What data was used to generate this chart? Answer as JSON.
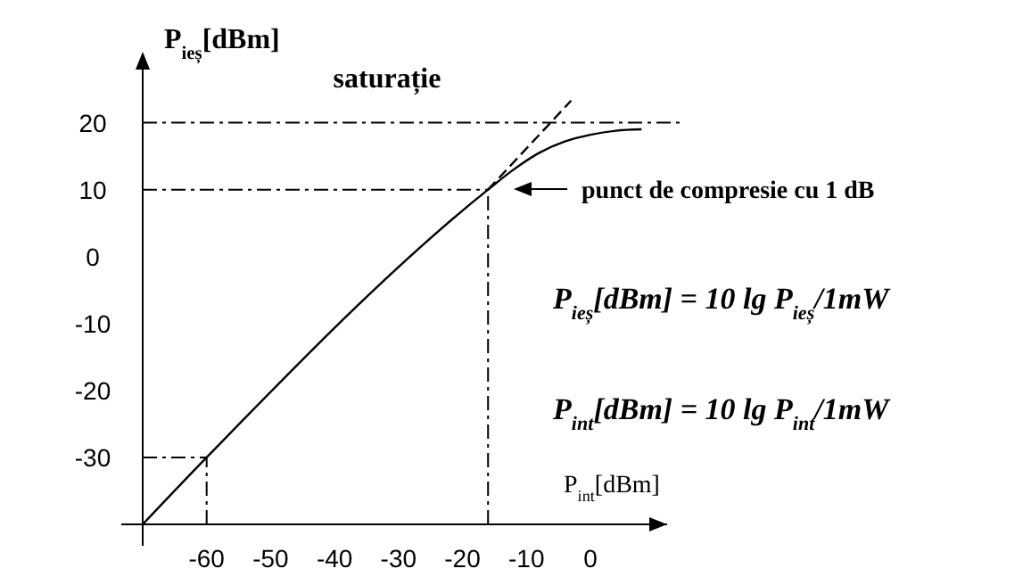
{
  "chart_data": {
    "type": "line",
    "xlabel": "P$_{int}$[dBm]",
    "ylabel": "P$_{ieș}$[dBm]",
    "xlim": [
      -70,
      12
    ],
    "ylim": [
      -40,
      29
    ],
    "xticks": [
      -60,
      -50,
      -40,
      -30,
      -20,
      -10,
      0
    ],
    "yticks": [
      -30,
      -20,
      -10,
      0,
      10,
      20
    ],
    "grid": false,
    "marker": "none",
    "series": [
      {
        "color": "#000000",
        "x": [
          -70,
          -60,
          -16,
          -12,
          -8,
          -4,
          0,
          4,
          8
        ],
        "values": [
          -40,
          -30,
          10,
          13,
          15.5,
          17.2,
          18.2,
          18.8,
          19
        ],
        "line_style": "solid"
      },
      {
        "color": "#000000",
        "x": [
          -16,
          -3
        ],
        "values": [
          10,
          23.3
        ],
        "line_style": "dashed"
      }
    ],
    "ref_lines": [
      {
        "axis": "y",
        "value": 20,
        "label": "saturație",
        "line_style": "dashdot"
      },
      {
        "axis": "y",
        "value": 10,
        "line_style": "dashdot"
      },
      {
        "axis": "x",
        "value": -16,
        "line_style": "dashdot"
      },
      {
        "axis": "y",
        "value": -30,
        "line_style": "dashdot"
      },
      {
        "axis": "x",
        "value": -60,
        "line_style": "dashdot"
      }
    ],
    "annotations": [
      "punct de compresie cu 1 dB",
      "P$_{ieș}$[dBm] = 10 lg P$_{ieș}$/1mW",
      "P$_{int}$[dBm] = 10 lg P$_{int}$/1mW"
    ]
  }
}
